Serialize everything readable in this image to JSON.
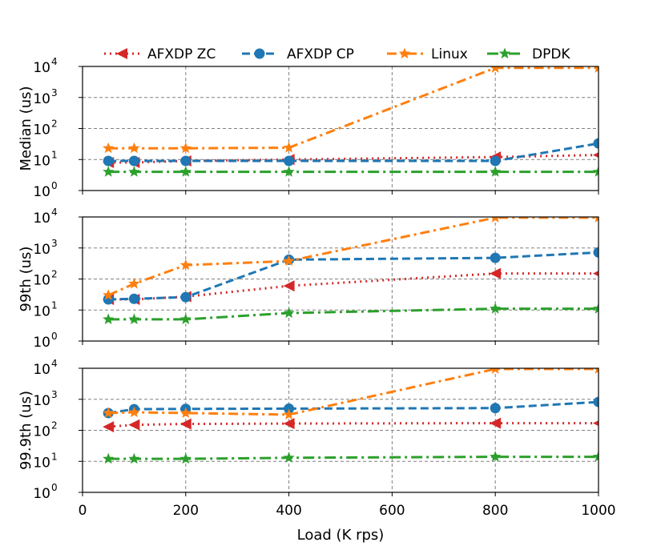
{
  "chart_data": {
    "type": "line",
    "xlabel": "Load (K rps)",
    "xlim": [
      0,
      1000
    ],
    "xticks": [
      "0",
      "200",
      "400",
      "600",
      "800",
      "1000"
    ],
    "yscale": "log",
    "ytick_base": "10",
    "ytick_exponents": [
      "0",
      "1",
      "2",
      "3",
      "4"
    ],
    "grid": true,
    "legend_position": "top",
    "series_styles": [
      {
        "name": "AFXDP ZC",
        "color": "#d62728",
        "dash": "2 5",
        "marker": "triangle-left"
      },
      {
        "name": "AFXDP CP",
        "color": "#1f77b4",
        "dash": "10 5",
        "marker": "circle"
      },
      {
        "name": "Linux",
        "color": "#ff7f0e",
        "dash": "12 5 3 5",
        "marker": "star"
      },
      {
        "name": "DPDK",
        "color": "#2ca02c",
        "dash": "14 5 3 5",
        "marker": "star"
      }
    ],
    "panels": [
      {
        "ylabel": "Median (us)",
        "ylim": [
          1,
          10000
        ],
        "series": [
          {
            "name": "AFXDP ZC",
            "x": [
              50,
              100,
              200,
              400,
              800,
              1000
            ],
            "y": [
              8,
              8,
              9,
              10,
              12,
              14
            ]
          },
          {
            "name": "AFXDP CP",
            "x": [
              50,
              100,
              200,
              400,
              800,
              1000
            ],
            "y": [
              9,
              9,
              9,
              9,
              9,
              33
            ]
          },
          {
            "name": "Linux",
            "x": [
              50,
              100,
              200,
              400,
              800,
              1000
            ],
            "y": [
              23,
              23,
              23,
              24,
              9000,
              9000
            ]
          },
          {
            "name": "DPDK",
            "x": [
              50,
              100,
              200,
              400,
              800,
              1000
            ],
            "y": [
              4,
              4,
              4,
              4,
              4,
              4
            ]
          }
        ]
      },
      {
        "ylabel": "99th (us)",
        "ylim": [
          1,
          10000
        ],
        "series": [
          {
            "name": "AFXDP ZC",
            "x": [
              50,
              100,
              200,
              400,
              800,
              1000
            ],
            "y": [
              22,
              22,
              27,
              60,
              150,
              150
            ]
          },
          {
            "name": "AFXDP CP",
            "x": [
              50,
              100,
              200,
              400,
              800,
              1000
            ],
            "y": [
              22,
              23,
              26,
              420,
              480,
              720
            ]
          },
          {
            "name": "Linux",
            "x": [
              50,
              100,
              200,
              400,
              800,
              1000
            ],
            "y": [
              30,
              70,
              280,
              380,
              9500,
              9500
            ]
          },
          {
            "name": "DPDK",
            "x": [
              50,
              100,
              200,
              400,
              800,
              1000
            ],
            "y": [
              5,
              5,
              5,
              8,
              11,
              11
            ]
          }
        ]
      },
      {
        "ylabel": "99.9th (us)",
        "ylim": [
          1,
          10000
        ],
        "series": [
          {
            "name": "AFXDP ZC",
            "x": [
              50,
              100,
              200,
              400,
              800,
              1000
            ],
            "y": [
              130,
              150,
              160,
              165,
              170,
              170
            ]
          },
          {
            "name": "AFXDP CP",
            "x": [
              50,
              100,
              200,
              400,
              800,
              1000
            ],
            "y": [
              360,
              480,
              490,
              500,
              520,
              820
            ]
          },
          {
            "name": "Linux",
            "x": [
              50,
              100,
              200,
              400,
              800,
              1000
            ],
            "y": [
              360,
              380,
              360,
              320,
              9500,
              9500
            ]
          },
          {
            "name": "DPDK",
            "x": [
              50,
              100,
              200,
              400,
              800,
              1000
            ],
            "y": [
              12,
              12,
              12,
              13,
              14,
              14
            ]
          }
        ]
      }
    ]
  }
}
